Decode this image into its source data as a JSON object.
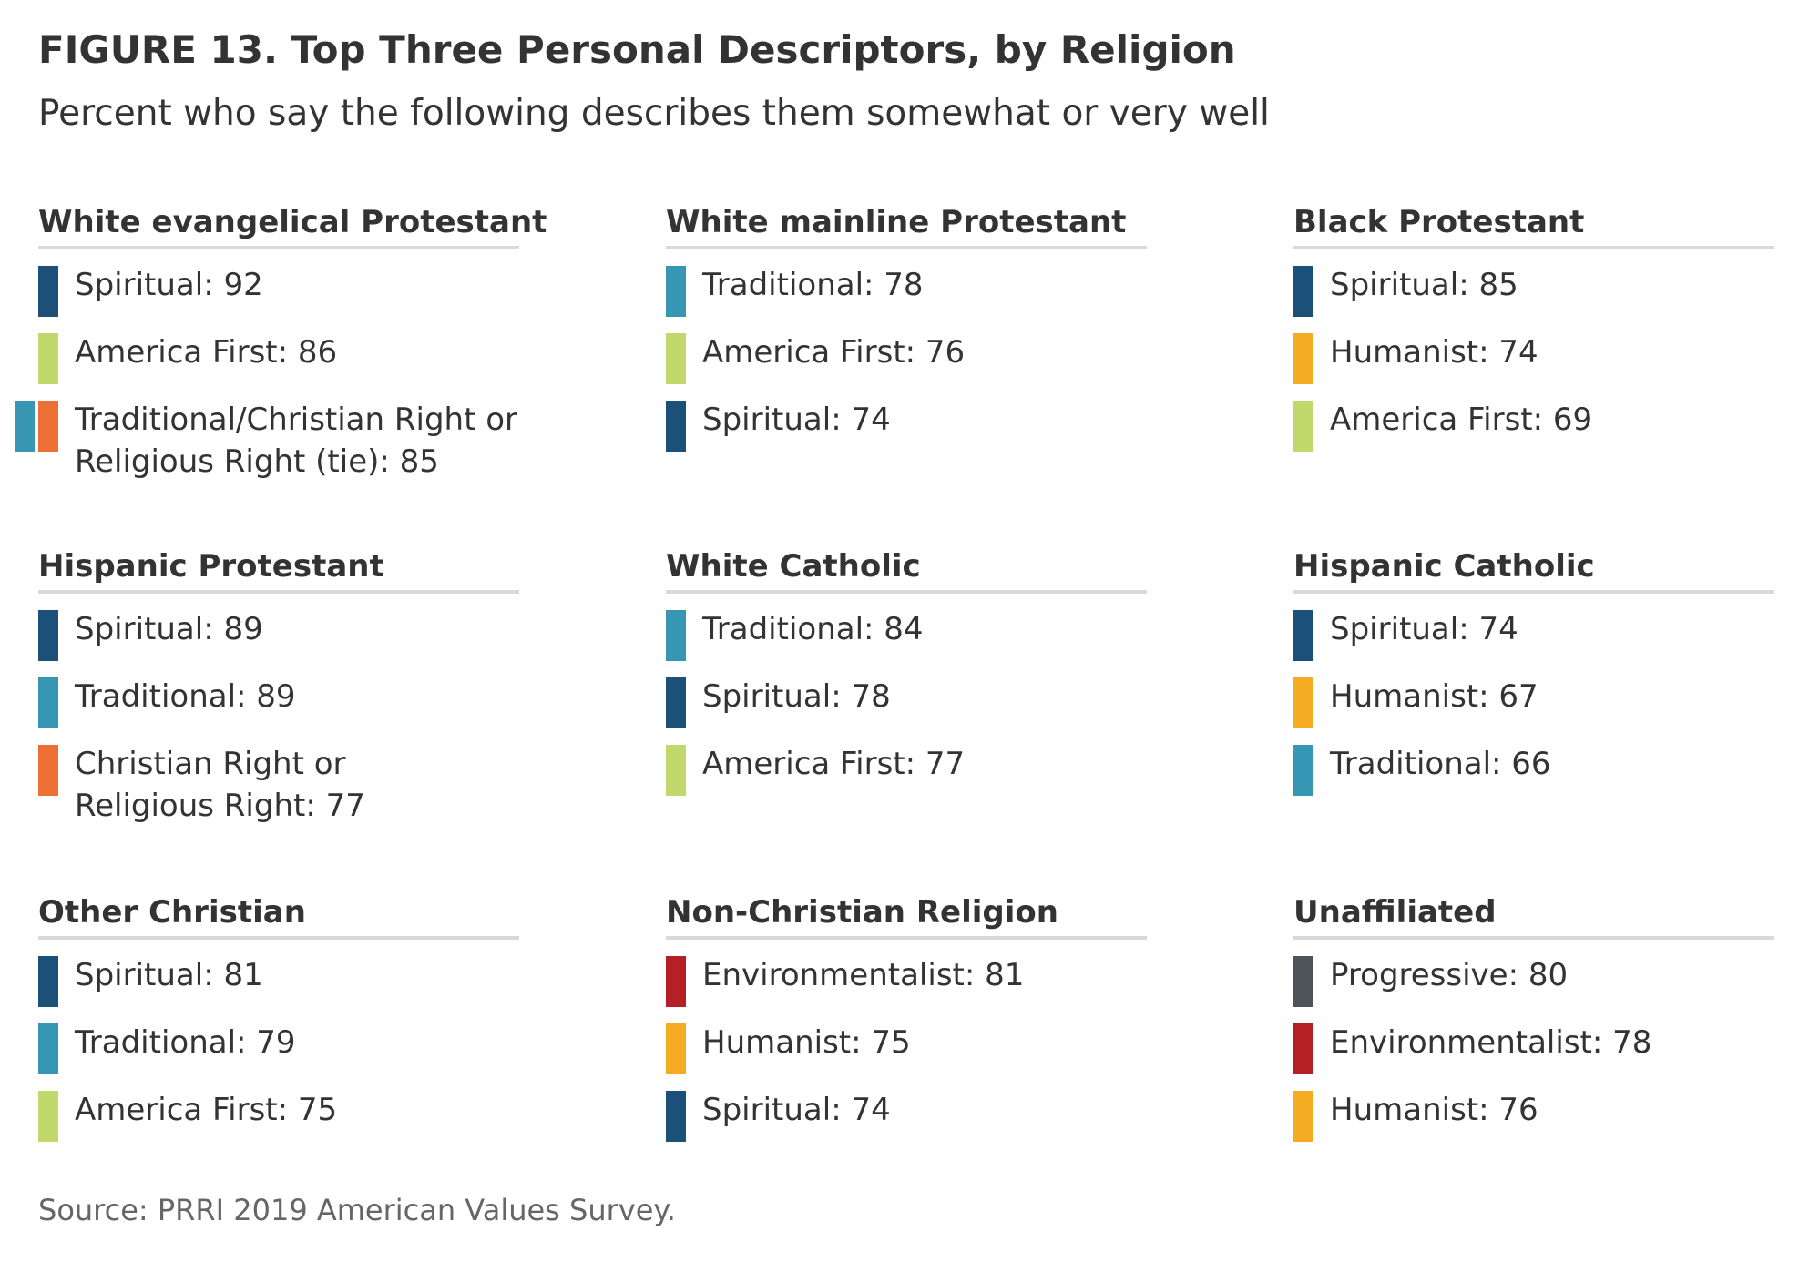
{
  "title": "FIGURE 13. Top Three Personal Descriptors, by Religion",
  "subtitle": "Percent who say the following describes them somewhat or very well",
  "source": "Source: PRRI 2019 American Values Survey.",
  "colors": {
    "spiritual": "#1b5079",
    "traditional": "#3696b4",
    "america_first": "#c1d96c",
    "christian_right": "#ec7036",
    "humanist": "#f5ab22",
    "environmentalist": "#b42025",
    "progressive": "#4d5358",
    "rule": "#d9d9d9"
  },
  "panels": [
    {
      "name": "White evangelical Protestant",
      "items": [
        {
          "label": "Spiritual: 92",
          "category": "Spiritual",
          "value": 92,
          "colors": [
            "#1b5079"
          ]
        },
        {
          "label": "America First: 86",
          "category": "America First",
          "value": 86,
          "colors": [
            "#c1d96c"
          ]
        },
        {
          "label": "Traditional/Christian Right or\nReligious Right (tie): 85",
          "category": "Traditional/Christian Right or Religious Right (tie)",
          "value": 85,
          "colors": [
            "#3696b4",
            "#ec7036"
          ]
        }
      ]
    },
    {
      "name": "White mainline Protestant",
      "items": [
        {
          "label": "Traditional: 78",
          "category": "Traditional",
          "value": 78,
          "colors": [
            "#3696b4"
          ]
        },
        {
          "label": "America First: 76",
          "category": "America First",
          "value": 76,
          "colors": [
            "#c1d96c"
          ]
        },
        {
          "label": "Spiritual: 74",
          "category": "Spiritual",
          "value": 74,
          "colors": [
            "#1b5079"
          ]
        }
      ]
    },
    {
      "name": "Black Protestant",
      "items": [
        {
          "label": "Spiritual: 85",
          "category": "Spiritual",
          "value": 85,
          "colors": [
            "#1b5079"
          ]
        },
        {
          "label": "Humanist: 74",
          "category": "Humanist",
          "value": 74,
          "colors": [
            "#f5ab22"
          ]
        },
        {
          "label": "America First: 69",
          "category": "America First",
          "value": 69,
          "colors": [
            "#c1d96c"
          ]
        }
      ]
    },
    {
      "name": "Hispanic Protestant",
      "items": [
        {
          "label": "Spiritual: 89",
          "category": "Spiritual",
          "value": 89,
          "colors": [
            "#1b5079"
          ]
        },
        {
          "label": "Traditional: 89",
          "category": "Traditional",
          "value": 89,
          "colors": [
            "#3696b4"
          ]
        },
        {
          "label": "Christian Right or\nReligious Right: 77",
          "category": "Christian Right or Religious Right",
          "value": 77,
          "colors": [
            "#ec7036"
          ]
        }
      ]
    },
    {
      "name": "White Catholic",
      "items": [
        {
          "label": "Traditional: 84",
          "category": "Traditional",
          "value": 84,
          "colors": [
            "#3696b4"
          ]
        },
        {
          "label": "Spiritual: 78",
          "category": "Spiritual",
          "value": 78,
          "colors": [
            "#1b5079"
          ]
        },
        {
          "label": "America First: 77",
          "category": "America First",
          "value": 77,
          "colors": [
            "#c1d96c"
          ]
        }
      ]
    },
    {
      "name": "Hispanic Catholic",
      "items": [
        {
          "label": "Spiritual: 74",
          "category": "Spiritual",
          "value": 74,
          "colors": [
            "#1b5079"
          ]
        },
        {
          "label": "Humanist: 67",
          "category": "Humanist",
          "value": 67,
          "colors": [
            "#f5ab22"
          ]
        },
        {
          "label": "Traditional: 66",
          "category": "Traditional",
          "value": 66,
          "colors": [
            "#3696b4"
          ]
        }
      ]
    },
    {
      "name": "Other Christian",
      "items": [
        {
          "label": "Spiritual: 81",
          "category": "Spiritual",
          "value": 81,
          "colors": [
            "#1b5079"
          ]
        },
        {
          "label": "Traditional: 79",
          "category": "Traditional",
          "value": 79,
          "colors": [
            "#3696b4"
          ]
        },
        {
          "label": "America First: 75",
          "category": "America First",
          "value": 75,
          "colors": [
            "#c1d96c"
          ]
        }
      ]
    },
    {
      "name": "Non-Christian Religion",
      "items": [
        {
          "label": "Environmentalist: 81",
          "category": "Environmentalist",
          "value": 81,
          "colors": [
            "#b42025"
          ]
        },
        {
          "label": "Humanist: 75",
          "category": "Humanist",
          "value": 75,
          "colors": [
            "#f5ab22"
          ]
        },
        {
          "label": "Spiritual: 74",
          "category": "Spiritual",
          "value": 74,
          "colors": [
            "#1b5079"
          ]
        }
      ]
    },
    {
      "name": "Unaffiliated",
      "items": [
        {
          "label": "Progressive: 80",
          "category": "Progressive",
          "value": 80,
          "colors": [
            "#4d5358"
          ]
        },
        {
          "label": "Environmentalist: 78",
          "category": "Environmentalist",
          "value": 78,
          "colors": [
            "#b42025"
          ]
        },
        {
          "label": "Humanist: 76",
          "category": "Humanist",
          "value": 76,
          "colors": [
            "#f5ab22"
          ]
        }
      ]
    }
  ]
}
